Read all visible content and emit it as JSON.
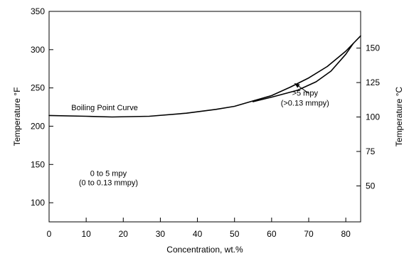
{
  "chart_data": {
    "type": "line",
    "title": "",
    "xlabel": "Concentration, wt.%",
    "ylabel_left": "Temperature °F",
    "ylabel_right": "Temperature °C",
    "xlim": [
      0,
      84
    ],
    "ylim_left": [
      75,
      350
    ],
    "ylim_right": [
      23.9,
      176.7
    ],
    "x_ticks": [
      "0",
      "10",
      "20",
      "30",
      "40",
      "50",
      "60",
      "70",
      "80"
    ],
    "x_tick_values": [
      0,
      10,
      20,
      30,
      40,
      50,
      60,
      70,
      80
    ],
    "y_left_ticks": [
      "100",
      "150",
      "200",
      "250",
      "300",
      "350"
    ],
    "y_left_tick_values": [
      100,
      150,
      200,
      250,
      300,
      350
    ],
    "y_right_ticks": [
      "50",
      "75",
      "100",
      "125",
      "150"
    ],
    "y_right_tick_values": [
      50,
      75,
      100,
      125,
      150
    ],
    "series": [
      {
        "name": "Boiling Point Curve",
        "x": [
          0,
          10,
          17,
          27,
          37,
          45,
          50,
          55,
          60,
          65,
          70,
          75,
          80,
          84
        ],
        "y": [
          214,
          213,
          212,
          213,
          217,
          222,
          226,
          233,
          240,
          251,
          263,
          278,
          298,
          318
        ]
      },
      {
        "name": ">5 mpy (>0.13 mmpy)",
        "x": [
          55,
          60,
          67,
          72,
          76,
          80,
          82
        ],
        "y": [
          232,
          238,
          247,
          258,
          272,
          294,
          308
        ]
      }
    ],
    "annotations": [
      {
        "text": "Boiling Point Curve",
        "x": 6,
        "y": 221
      },
      {
        "text": ">5 mpy",
        "x": 69,
        "y": 240
      },
      {
        "text": "(>0.13 mmpy)",
        "x": 69,
        "y": 227
      },
      {
        "text": "0 to 5 mpy",
        "x": 16,
        "y": 135
      },
      {
        "text": "(0 to 0.13 mmpy)",
        "x": 16,
        "y": 123
      }
    ],
    "arrow": {
      "from": [
        70,
        243
      ],
      "to": [
        66.2,
        256
      ]
    },
    "grid": false,
    "legend": "none"
  }
}
